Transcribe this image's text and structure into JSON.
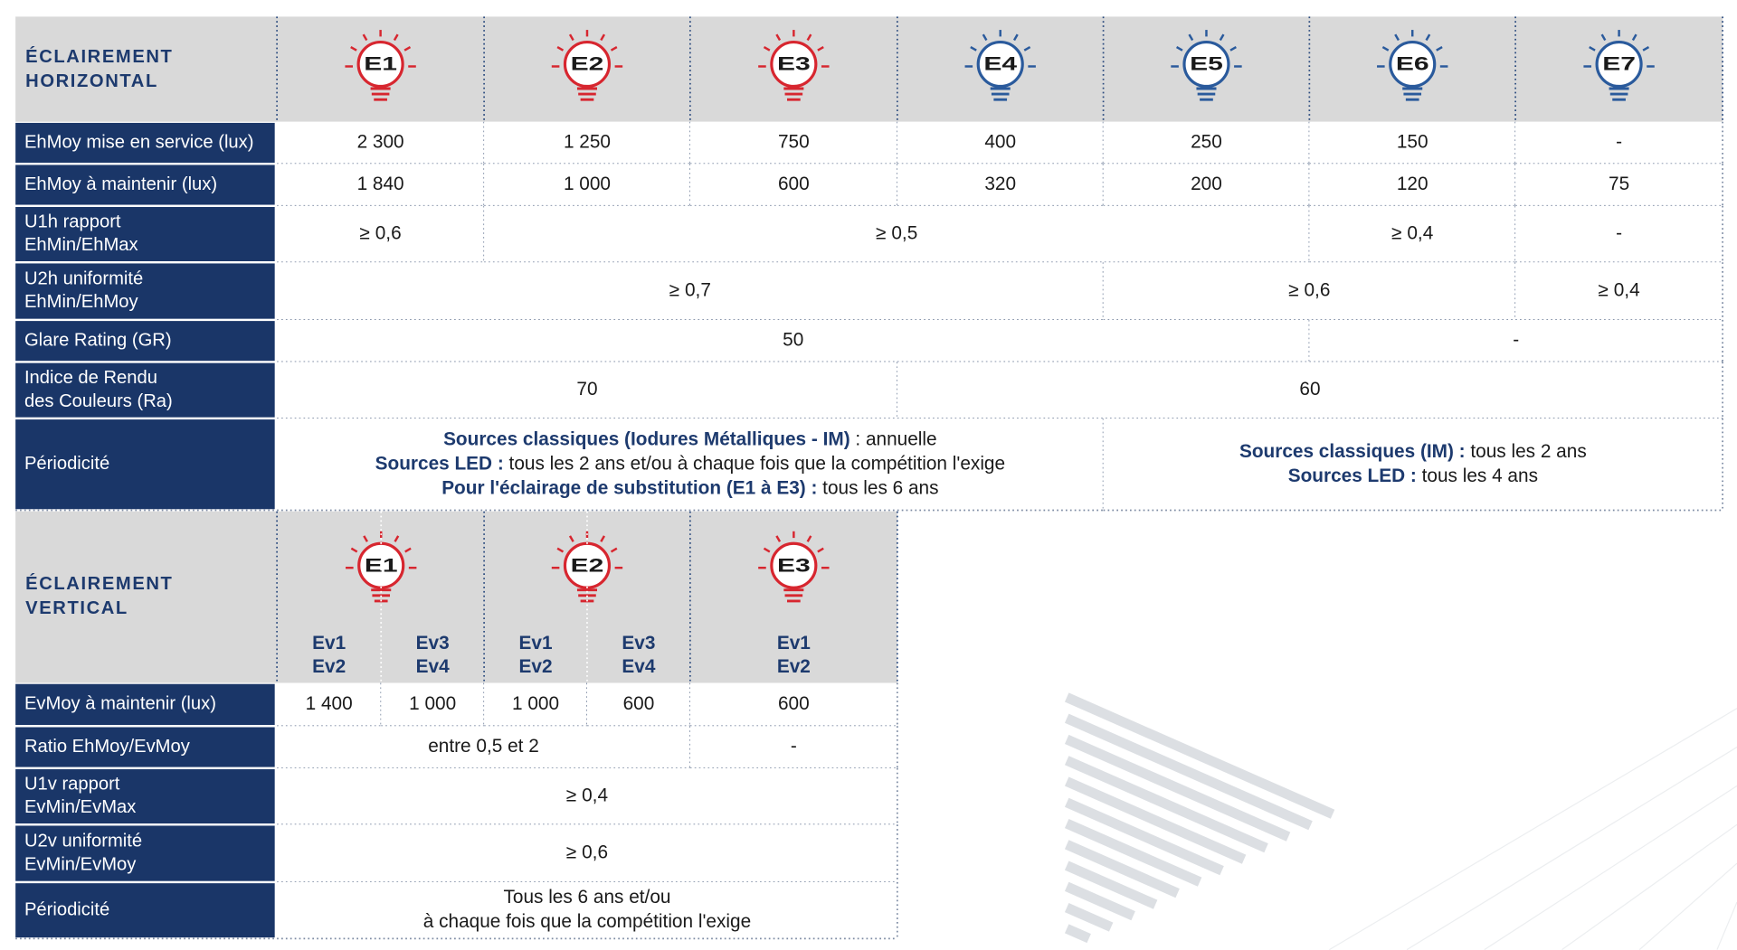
{
  "horizontal": {
    "title": [
      "ÉCLAIREMENT",
      "HORIZONTAL"
    ],
    "levels": [
      {
        "label": "E1",
        "color": "#d7262f"
      },
      {
        "label": "E2",
        "color": "#d7262f"
      },
      {
        "label": "E3",
        "color": "#d7262f"
      },
      {
        "label": "E4",
        "color": "#2a5a9c"
      },
      {
        "label": "E5",
        "color": "#2a5a9c"
      },
      {
        "label": "E6",
        "color": "#2a5a9c"
      },
      {
        "label": "E7",
        "color": "#2a5a9c"
      }
    ],
    "rows": [
      {
        "label": [
          "EhMoy mise en service (lux)"
        ],
        "cells": [
          "2 300",
          "1 250",
          "750",
          "400",
          "250",
          "150",
          "-"
        ]
      },
      {
        "label": [
          "EhMoy à maintenir (lux)"
        ],
        "cells": [
          "1 840",
          "1 000",
          "600",
          "320",
          "200",
          "120",
          "75"
        ]
      },
      {
        "label": [
          "U1h rapport",
          "EhMin/EhMax"
        ],
        "cells": [
          "≥ 0,6",
          "≥ 0,5",
          "≥ 0,4",
          "-"
        ]
      },
      {
        "label": [
          "U2h uniformité",
          "EhMin/EhMoy"
        ],
        "cells": [
          "≥ 0,7",
          "≥ 0,6",
          "≥ 0,4"
        ]
      },
      {
        "label": [
          "Glare Rating (GR)"
        ],
        "cells": [
          "50",
          "-"
        ]
      },
      {
        "label": [
          "Indice de Rendu",
          "des Couleurs (Ra)"
        ],
        "cells": [
          "70",
          "60"
        ]
      },
      {
        "label": [
          "Périodicité"
        ],
        "cells": [
          [
            {
              "bold": "Sources classiques (Iodures Métalliques - IM)",
              "text": " : annuelle"
            },
            {
              "bold": "Sources LED :",
              "text": " tous les 2 ans et/ou à chaque fois que la compétition l'exige"
            },
            {
              "bold": "Pour l'éclairage de substitution (E1 à E3) :",
              "text": " tous les 6 ans"
            }
          ],
          [
            {
              "bold": "Sources classiques (IM) :",
              "text": " tous les 2 ans"
            },
            {
              "bold": "Sources LED :",
              "text": " tous les 4 ans"
            }
          ]
        ]
      }
    ]
  },
  "vertical": {
    "title": [
      "ÉCLAIREMENT",
      "VERTICAL"
    ],
    "levels": [
      {
        "label": "E1",
        "color": "#d7262f"
      },
      {
        "label": "E2",
        "color": "#d7262f"
      },
      {
        "label": "E3",
        "color": "#d7262f"
      }
    ],
    "sub_headers": [
      [
        "Ev1",
        "Ev2"
      ],
      [
        "Ev3",
        "Ev4"
      ],
      [
        "Ev1",
        "Ev2"
      ],
      [
        "Ev3",
        "Ev4"
      ],
      [
        "Ev1",
        "Ev2"
      ]
    ],
    "rows": [
      {
        "label": [
          "EvMoy à maintenir (lux)"
        ],
        "cells": [
          "1 400",
          "1 000",
          "1 000",
          "600",
          "600"
        ]
      },
      {
        "label": [
          "Ratio EhMoy/EvMoy"
        ],
        "cells": [
          "entre 0,5 et 2",
          "-"
        ]
      },
      {
        "label": [
          "U1v rapport",
          "EvMin/EvMax"
        ],
        "cells": [
          "≥ 0,4"
        ]
      },
      {
        "label": [
          "U2v uniformité",
          "EvMin/EvMoy"
        ],
        "cells": [
          "≥ 0,6"
        ]
      },
      {
        "label": [
          "Périodicité"
        ],
        "cells": [
          [
            "Tous les 6 ans et/ou",
            "à chaque fois que la compétition l'exige"
          ]
        ]
      }
    ]
  }
}
